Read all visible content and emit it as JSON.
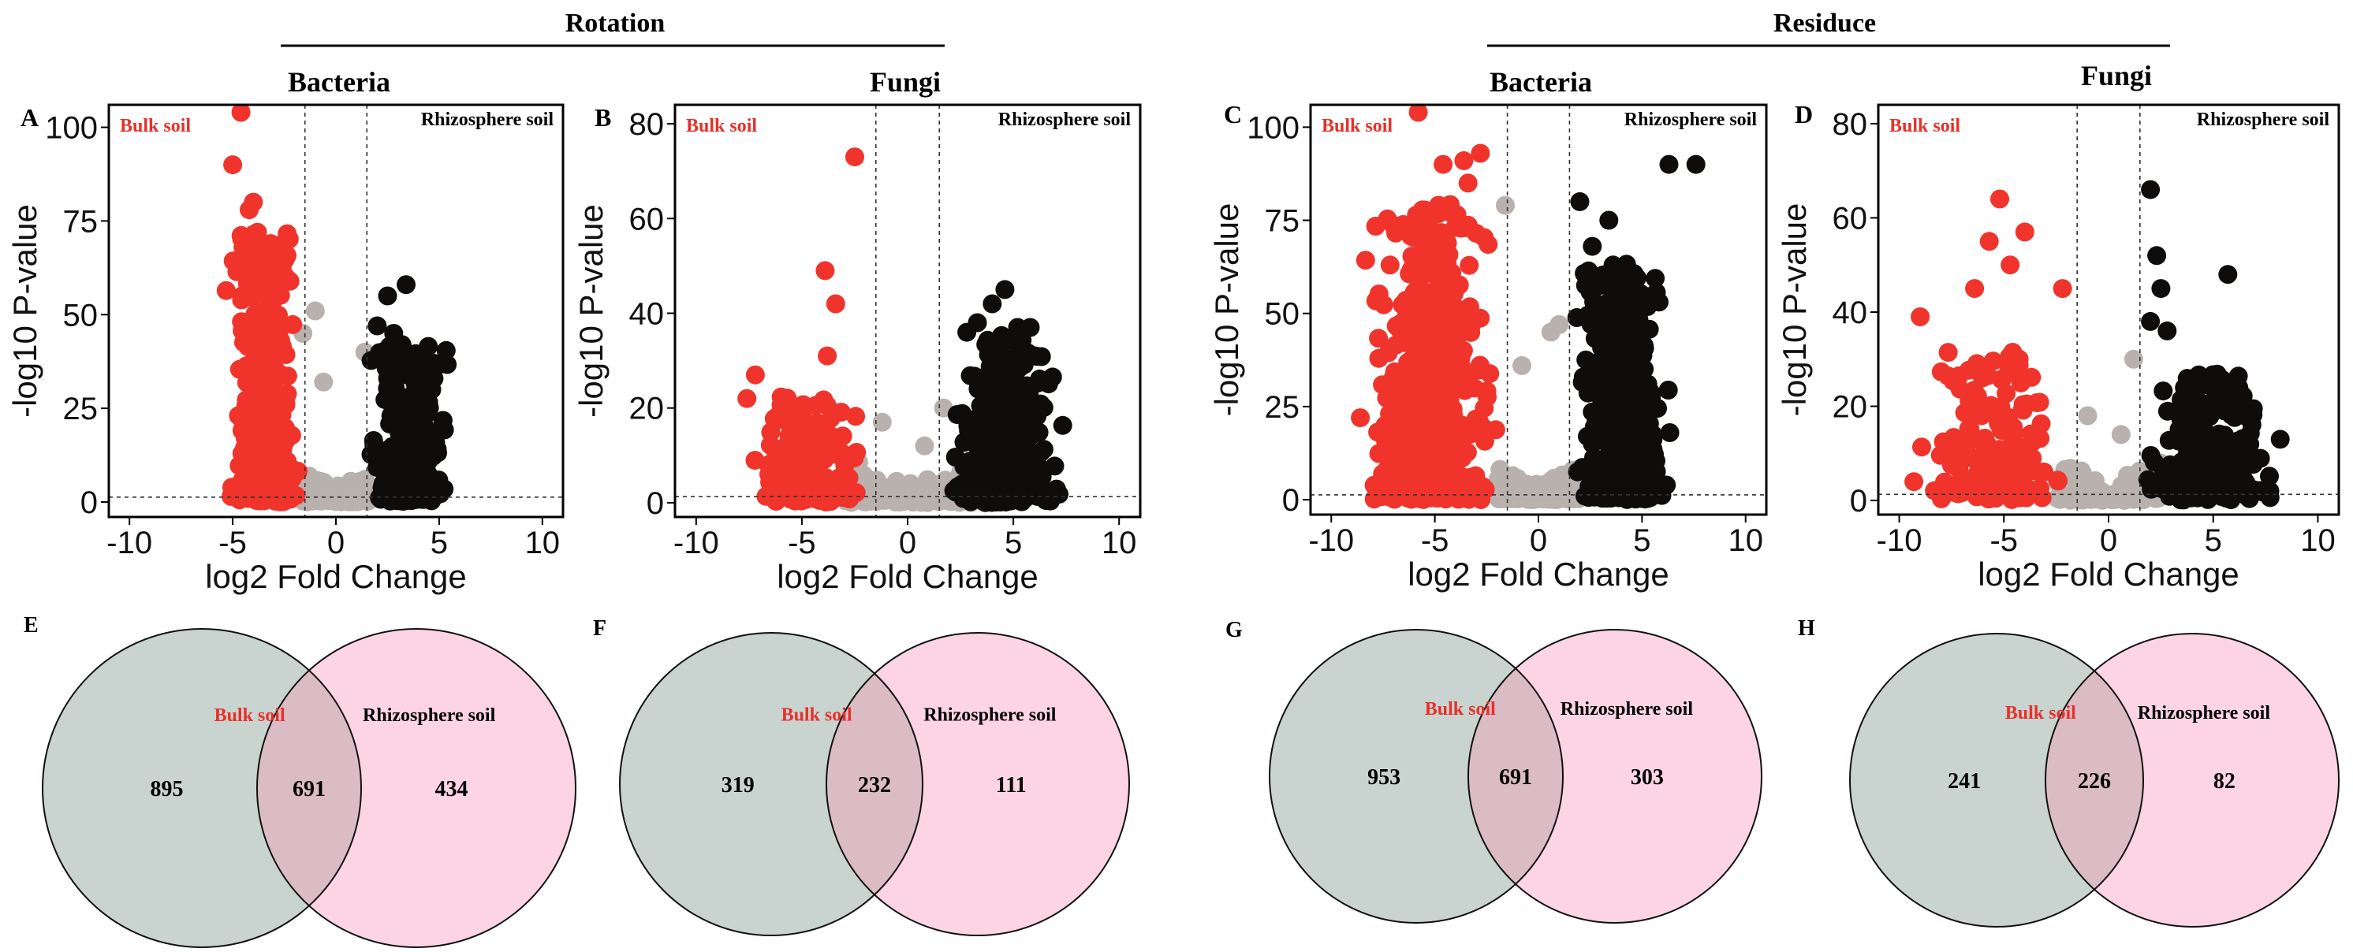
{
  "colors": {
    "bulk": "#f0342c",
    "rhizo": "#0f0d0b",
    "ns": "#b8b1ad",
    "venn_bulk_fill": "#c9d3cf",
    "venn_rhizo_fill": "#fcd4e4",
    "venn_overlap_fill": "#dcbcc4"
  },
  "group_titles": {
    "rotation": "Rotation",
    "residue": "Residuce"
  },
  "subtitles": {
    "a": "Bacteria",
    "b": "Fungi",
    "c": "Bacteria",
    "d": "Fungi"
  },
  "letters": {
    "a": "A",
    "b": "B",
    "c": "C",
    "d": "D",
    "e": "E",
    "f": "F",
    "g": "G",
    "h": "H"
  },
  "chart_data": [
    {
      "id": "A",
      "type": "scatter",
      "title": "Bacteria",
      "group": "Rotation",
      "xlabel": "log2 Fold Change",
      "ylabel": "-log10 P-value",
      "xlim": [
        -11,
        11
      ],
      "ylim": [
        -4,
        106
      ],
      "xticks": [
        -10,
        -5,
        0,
        5,
        10
      ],
      "yticks": [
        0,
        25,
        50,
        75,
        100
      ],
      "thresholds": {
        "x": [
          -1.5,
          1.5
        ],
        "y": 1.3
      },
      "legend": {
        "left": "Bulk soil",
        "right": "Rhizosphere soil"
      },
      "bulk": {
        "x_range": [
          -5.6,
          -1.5
        ],
        "y_max": 70,
        "n": 420,
        "extra": [
          [
            -4.6,
            104
          ],
          [
            -5.0,
            90
          ],
          [
            -4.0,
            80
          ],
          [
            -4.2,
            78
          ],
          [
            -3.8,
            72
          ],
          [
            -4.5,
            68
          ],
          [
            -3.6,
            66
          ]
        ]
      },
      "rhizo": {
        "x_range": [
          1.5,
          5.6
        ],
        "y_max": 40,
        "n": 360,
        "extra": [
          [
            3.4,
            58
          ],
          [
            2.5,
            55
          ],
          [
            2.0,
            47
          ],
          [
            2.8,
            45
          ],
          [
            3.2,
            42
          ],
          [
            2.3,
            40
          ]
        ]
      },
      "ns": {
        "x_range": [
          -1.6,
          1.6
        ],
        "n": 160,
        "extra": [
          [
            -1.0,
            51
          ],
          [
            -1.6,
            45
          ],
          [
            1.4,
            40
          ],
          [
            -0.6,
            32
          ]
        ]
      }
    },
    {
      "id": "B",
      "type": "scatter",
      "title": "Fungi",
      "group": "Rotation",
      "xlabel": "log2 Fold Change",
      "ylabel": "-log10 P-value",
      "xlim": [
        -11,
        11
      ],
      "ylim": [
        -3,
        84
      ],
      "xticks": [
        -10,
        -5,
        0,
        5,
        10
      ],
      "yticks": [
        0,
        20,
        40,
        60,
        80
      ],
      "thresholds": {
        "x": [
          -1.5,
          1.5
        ],
        "y": 1.3
      },
      "legend": {
        "left": "Bulk soil",
        "right": "Rhizosphere soil"
      },
      "bulk": {
        "x_range": [
          -8.0,
          -1.6
        ],
        "y_max": 22,
        "n": 170,
        "extra": [
          [
            -2.5,
            73
          ],
          [
            -3.9,
            49
          ],
          [
            -3.4,
            42
          ],
          [
            -3.8,
            31
          ],
          [
            -7.2,
            27
          ],
          [
            -7.6,
            22
          ]
        ]
      },
      "rhizo": {
        "x_range": [
          1.6,
          7.8
        ],
        "y_max": 34,
        "n": 360,
        "extra": [
          [
            4.6,
            45
          ],
          [
            4.0,
            42
          ],
          [
            3.3,
            38
          ],
          [
            5.2,
            37
          ],
          [
            5.8,
            37
          ],
          [
            2.8,
            36
          ]
        ]
      },
      "ns": {
        "x_range": [
          -3.0,
          3.0
        ],
        "n": 150,
        "extra": [
          [
            1.7,
            20
          ],
          [
            -1.2,
            17
          ],
          [
            0.8,
            12
          ]
        ]
      }
    },
    {
      "id": "C",
      "type": "scatter",
      "title": "Bacteria",
      "group": "Residuce",
      "xlabel": "log2 Fold Change",
      "ylabel": "-log10 P-value",
      "xlim": [
        -11,
        11
      ],
      "ylim": [
        -4,
        106
      ],
      "xticks": [
        -10,
        -5,
        0,
        5,
        10
      ],
      "yticks": [
        0,
        25,
        50,
        75,
        100
      ],
      "thresholds": {
        "x": [
          -1.5,
          1.5
        ],
        "y": 1.3
      },
      "legend": {
        "left": "Bulk soil",
        "right": "Rhizosphere soil"
      },
      "bulk": {
        "x_range": [
          -8.8,
          -1.6
        ],
        "y_max": 78,
        "n": 650,
        "extra": [
          [
            -5.8,
            104
          ],
          [
            -3.6,
            91
          ],
          [
            -2.8,
            93
          ],
          [
            -4.6,
            90
          ],
          [
            -3.4,
            85
          ],
          [
            -8.6,
            22
          ]
        ]
      },
      "rhizo": {
        "x_range": [
          1.6,
          6.5
        ],
        "y_max": 62,
        "n": 600,
        "extra": [
          [
            6.3,
            90
          ],
          [
            7.6,
            90
          ],
          [
            2.0,
            80
          ],
          [
            3.4,
            75
          ],
          [
            2.6,
            68
          ],
          [
            3.6,
            63
          ],
          [
            4.0,
            60
          ]
        ]
      },
      "ns": {
        "x_range": [
          -2.0,
          2.0
        ],
        "n": 220,
        "extra": [
          [
            -1.6,
            79
          ],
          [
            1.0,
            47
          ],
          [
            0.6,
            45
          ],
          [
            -0.8,
            36
          ]
        ]
      }
    },
    {
      "id": "D",
      "type": "scatter",
      "title": "Fungi",
      "group": "Residuce",
      "xlabel": "log2 Fold Change",
      "ylabel": "-log10 P-value",
      "xlim": [
        -11,
        11
      ],
      "ylim": [
        -3,
        84
      ],
      "xticks": [
        -10,
        -5,
        0,
        5,
        10
      ],
      "yticks": [
        0,
        20,
        40,
        60,
        80
      ],
      "thresholds": {
        "x": [
          -1.5,
          1.5
        ],
        "y": 1.3
      },
      "legend": {
        "left": "Bulk soil",
        "right": "Rhizosphere soil"
      },
      "bulk": {
        "x_range": [
          -9.3,
          -1.5
        ],
        "y_max": 32,
        "n": 180,
        "extra": [
          [
            -5.2,
            64
          ],
          [
            -4.0,
            57
          ],
          [
            -5.7,
            55
          ],
          [
            -4.7,
            50
          ],
          [
            -6.4,
            45
          ],
          [
            -2.2,
            45
          ],
          [
            -9.0,
            39
          ],
          [
            -9.3,
            4
          ]
        ]
      },
      "rhizo": {
        "x_range": [
          1.5,
          8.3
        ],
        "y_max": 26,
        "n": 240,
        "extra": [
          [
            2.0,
            66
          ],
          [
            2.3,
            52
          ],
          [
            5.7,
            48
          ],
          [
            2.5,
            45
          ],
          [
            2.0,
            38
          ],
          [
            2.8,
            36
          ],
          [
            8.2,
            13
          ]
        ]
      },
      "ns": {
        "x_range": [
          -2.5,
          2.5
        ],
        "n": 120,
        "extra": [
          [
            1.2,
            30
          ],
          [
            -1.0,
            18
          ],
          [
            0.6,
            14
          ]
        ]
      }
    },
    {
      "id": "E",
      "type": "venn",
      "labels": [
        "Bulk soil",
        "Rhizosphere soil"
      ],
      "values": {
        "left": 895,
        "overlap": 691,
        "right": 434
      }
    },
    {
      "id": "F",
      "type": "venn",
      "labels": [
        "Bulk soil",
        "Rhizosphere soil"
      ],
      "values": {
        "left": 319,
        "overlap": 232,
        "right": 111
      }
    },
    {
      "id": "G",
      "type": "venn",
      "labels": [
        "Bulk soil",
        "Rhizosphere soil"
      ],
      "values": {
        "left": 953,
        "overlap": 691,
        "right": 303
      }
    },
    {
      "id": "H",
      "type": "venn",
      "labels": [
        "Bulk soil",
        "Rhizosphere soil"
      ],
      "values": {
        "left": 241,
        "overlap": 226,
        "right": 82
      }
    }
  ]
}
